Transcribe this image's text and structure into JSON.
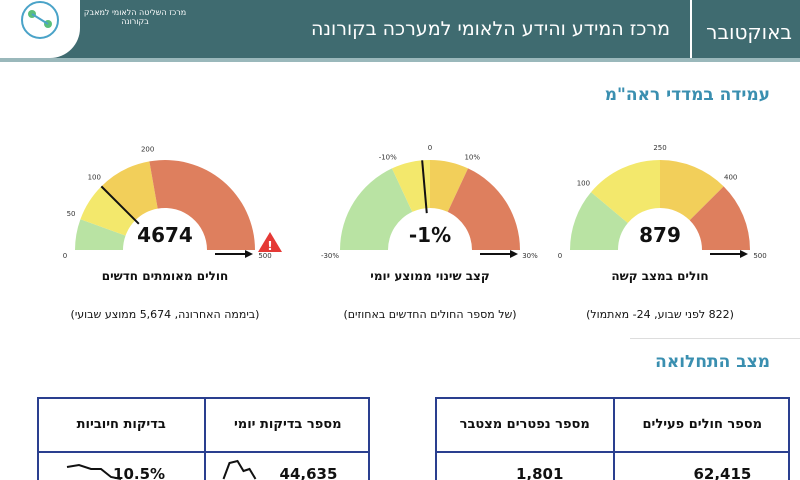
{
  "header": {
    "subtitle": "מרכז המידע והידע הלאומי למערכה בקורונה",
    "date": "באוקטובר",
    "logo_text": "מרכז השליטה הלאומי למאבק בקורונה"
  },
  "section1": {
    "title": "עמידה במדדי ראה\"מ"
  },
  "gauges": [
    {
      "value": "879",
      "label": "חולים במצב קשה",
      "note": "(822 לפני שבוע, 24- מאתמול)",
      "ticks": [
        "0",
        "100",
        "250",
        "400",
        "500"
      ]
    },
    {
      "value": "-1%",
      "label": "קצב שינוי ממוצע יומי",
      "note": "(של מספר החולים החדשים באחוזים)",
      "ticks": [
        "-30%",
        "-10%",
        "0",
        "10%",
        "30%"
      ]
    },
    {
      "value": "4674",
      "label": "חולים מאומתים חדשים",
      "note": "(ביממה האחרונה, 5,674 ממוצע שבועי)",
      "ticks": [
        "0",
        "50",
        "100",
        "200",
        "500"
      ]
    }
  ],
  "section2": {
    "title": "מצב התחלואה"
  },
  "tables": [
    {
      "headers": [
        "מספר חולים פעילים",
        "מספר נפטרים מצטבר"
      ],
      "values": [
        "62,415",
        "1,801"
      ]
    },
    {
      "headers": [
        "מספר בדיקות יומי",
        "בדיקות חיוביות"
      ],
      "values": [
        "44,635",
        "10.5%"
      ]
    }
  ]
}
